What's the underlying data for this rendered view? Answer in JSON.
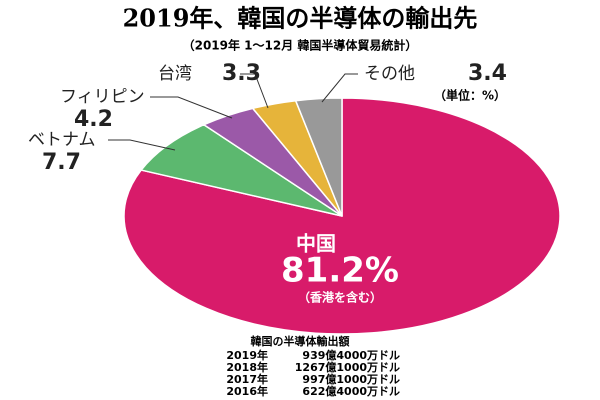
{
  "chart_data": {
    "type": "pie",
    "title": "2019年、韓国の半導体の輸出先",
    "subtitle": "（2019年 1～12月 韓国半導体貿易統計）",
    "unit_note": "（単位：%）",
    "note": "（香港を含む）",
    "categories": [
      "中国",
      "ベトナム",
      "フィリピン",
      "台湾",
      "その他"
    ],
    "values": [
      81.2,
      7.7,
      4.2,
      3.3,
      3.4
    ],
    "value_labels": [
      "81.2%",
      "7.7",
      "4.2",
      "3.3",
      "3.4"
    ],
    "colors": [
      "#d81b6a",
      "#5cb86f",
      "#9b59a8",
      "#e6b43a",
      "#999999"
    ]
  },
  "table": {
    "title": "韓国の半導体輸出額",
    "rows": [
      [
        "2019年",
        "939億4000万ドル"
      ],
      [
        "2018年",
        "1267億1000万ドル"
      ],
      [
        "2017年",
        "997億1000万ドル"
      ],
      [
        "2016年",
        "622億4000万ドル"
      ]
    ]
  }
}
